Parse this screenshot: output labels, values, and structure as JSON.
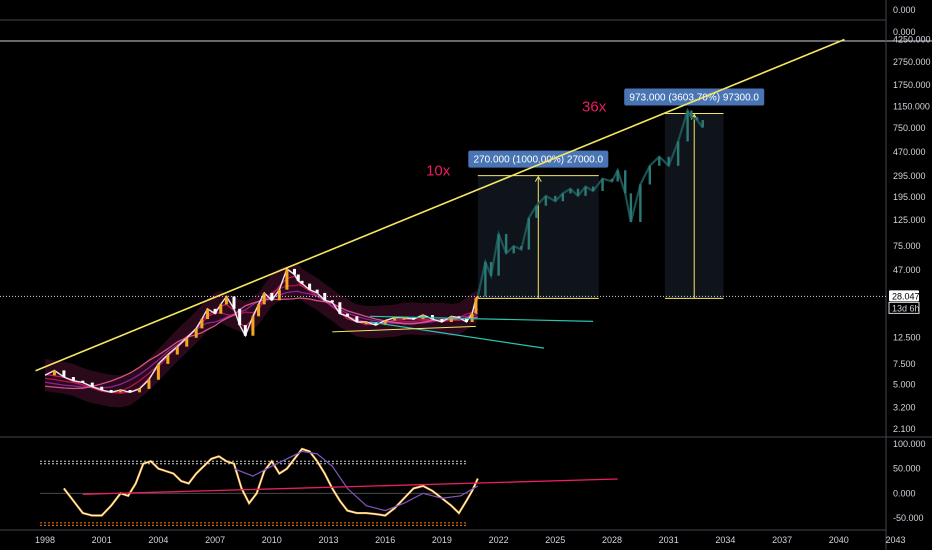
{
  "chart_data": [
    {
      "type": "line",
      "title": "",
      "yscale": "log",
      "ylim": [
        2.0,
        4250
      ],
      "xlim": [
        1997.5,
        2043.2
      ],
      "y_ticks": [
        "4250.000",
        "2750.000",
        "1750.000",
        "1150.000",
        "750.000",
        "470.000",
        "295.000",
        "195.000",
        "125.000",
        "75.000",
        "47.000",
        "28.047",
        "12.500",
        "7.500",
        "5.000",
        "3.200",
        "2.100"
      ],
      "top_ticks": [
        "0.000",
        "0.000"
      ],
      "x_ticks": [
        "1998",
        "2001",
        "2004",
        "2007",
        "2010",
        "2013",
        "2016",
        "2019",
        "2022",
        "2025",
        "2028",
        "2031",
        "2034",
        "2037",
        "2040",
        "2043"
      ],
      "last_price": "28.047",
      "countdown": "13d 6h",
      "series": [
        {
          "x": [
            1998.0,
            1998.5,
            1999.0,
            1999.5,
            2000.0,
            2000.5,
            2001.0,
            2001.5,
            2002.0,
            2002.5,
            2003.0,
            2003.5,
            2004.0,
            2004.5,
            2005.0,
            2005.5,
            2006.0,
            2006.3,
            2006.6,
            2007.0,
            2007.3,
            2007.6,
            2008.0,
            2008.3,
            2008.6,
            2009.0,
            2009.3,
            2009.6,
            2010.0,
            2010.4,
            2010.8,
            2011.2,
            2011.4,
            2011.6,
            2012.0,
            2012.4,
            2012.8,
            2013.2,
            2013.6,
            2014.0,
            2014.5,
            2015.0,
            2015.5,
            2016.0,
            2016.5,
            2017.0,
            2017.5,
            2018.0,
            2018.5,
            2019.0,
            2019.5,
            2019.9,
            2020.3,
            2020.6,
            2020.8,
            2020.9
          ],
          "values": [
            6.0,
            6.6,
            5.8,
            5.4,
            5.2,
            4.8,
            4.5,
            4.3,
            4.5,
            4.3,
            4.6,
            5.5,
            7.5,
            9.0,
            10.5,
            12.5,
            15.0,
            18.0,
            22.0,
            20.0,
            24.0,
            28.0,
            22.0,
            16.0,
            13.0,
            19.0,
            24.0,
            30.0,
            26.0,
            32.0,
            48.0,
            43.0,
            38.0,
            36.0,
            32.0,
            30.0,
            26.0,
            25.0,
            20.0,
            19.0,
            17.0,
            17.0,
            16.0,
            17.5,
            18.5,
            18.5,
            18.0,
            19.5,
            18.0,
            17.0,
            19.0,
            18.5,
            17.0,
            20.0,
            27.0,
            28.047
          ]
        },
        {
          "name": "projection",
          "x": [
            2020.9,
            2021.3,
            2021.6,
            2022.0,
            2022.4,
            2022.8,
            2023.2,
            2023.6,
            2024.0,
            2024.5,
            2025.0,
            2025.4,
            2025.8,
            2026.2,
            2026.6,
            2027.0,
            2027.5,
            2028.0,
            2028.3,
            2028.7,
            2029.0,
            2029.5,
            2030.0,
            2030.5,
            2031.0,
            2031.5,
            2032.0,
            2032.2,
            2032.5,
            2032.8
          ],
          "values": [
            28.0,
            55.0,
            42.0,
            95.0,
            65.0,
            75.0,
            70.0,
            130.0,
            165.0,
            200.0,
            180.0,
            210.0,
            230.0,
            200.0,
            240.0,
            220.0,
            280.0,
            265.0,
            330.0,
            210.0,
            120.0,
            250.0,
            360.0,
            430.0,
            360.0,
            580.0,
            1060.0,
            930.0,
            880.0,
            760.0
          ]
        }
      ],
      "lines": [
        {
          "name": "trendline",
          "x": [
            1997.5,
            2040.3
          ],
          "values": [
            6.56,
            4250
          ]
        }
      ],
      "measurements": [
        {
          "label": "270.000 (1000.00%) 27000.0",
          "ratio_label": "10x",
          "x": [
            2020.9,
            2027.3
          ],
          "from": 27.0,
          "to": 297.0
        },
        {
          "label": "973.000 (3603.70%) 97300.0",
          "ratio_label": "36x",
          "x": [
            2030.8,
            2033.9
          ],
          "from": 27.0,
          "to": 1000.0
        }
      ]
    },
    {
      "type": "line",
      "title": "",
      "ylim": [
        -60,
        100
      ],
      "y_ticks": [
        "100.000",
        "50.000",
        "0.000",
        "-50.000"
      ],
      "bands": [
        60,
        65,
        -60,
        -65
      ],
      "series": [
        {
          "x": [
            1999.0,
            1999.5,
            2000.0,
            2000.5,
            2001.0,
            2001.5,
            2002.0,
            2002.4,
            2002.8,
            2003.2,
            2003.6,
            2004.0,
            2004.4,
            2004.8,
            2005.2,
            2005.6,
            2006.0,
            2006.4,
            2006.8,
            2007.2,
            2007.6,
            2008.0,
            2008.4,
            2008.8,
            2009.2,
            2009.6,
            2010.0,
            2010.4,
            2010.8,
            2011.2,
            2011.6,
            2012.0,
            2012.4,
            2012.8,
            2013.2,
            2013.6,
            2014.0,
            2014.5,
            2015.0,
            2015.5,
            2016.0,
            2016.5,
            2017.0,
            2017.5,
            2018.0,
            2018.5,
            2019.0,
            2019.5,
            2019.9,
            2020.3,
            2020.6,
            2020.9
          ],
          "values": [
            10,
            -15,
            -40,
            -45,
            -45,
            -25,
            0,
            -5,
            20,
            60,
            65,
            50,
            45,
            40,
            25,
            20,
            40,
            55,
            70,
            75,
            65,
            60,
            10,
            -20,
            0,
            45,
            65,
            40,
            50,
            70,
            90,
            85,
            65,
            40,
            10,
            -15,
            -35,
            -40,
            -40,
            -42,
            -45,
            -30,
            -10,
            10,
            15,
            5,
            -10,
            -25,
            -40,
            -15,
            5,
            30
          ]
        },
        {
          "name": "signal",
          "x": [
            2008.0,
            2009.0,
            2010.0,
            2010.8,
            2011.6,
            2012.4,
            2013.2,
            2014.0,
            2015.0,
            2016.0,
            2017.0,
            2018.0,
            2019.0,
            2020.0,
            2020.9
          ],
          "values": [
            50,
            35,
            55,
            70,
            85,
            80,
            55,
            10,
            -25,
            -35,
            -20,
            0,
            -10,
            -5,
            15
          ]
        }
      ],
      "lines": [
        {
          "name": "oscillator-trendline",
          "x": [
            2000.0,
            2028.3
          ],
          "values": [
            -2,
            29
          ]
        }
      ]
    }
  ]
}
